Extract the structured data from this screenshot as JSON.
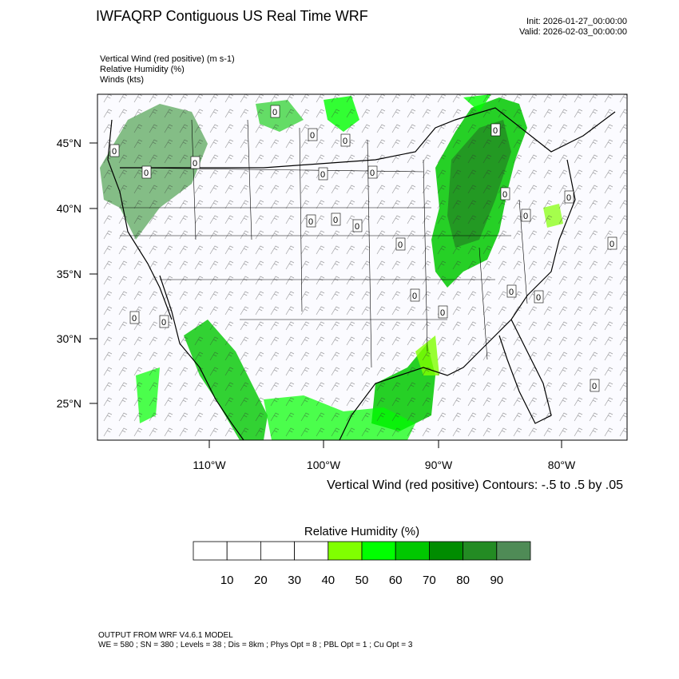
{
  "header": {
    "title": "IWFAQRP Contiguous US Real Time WRF",
    "init": "Init: 2026-01-27_00:00:00",
    "valid": "Valid: 2026-02-03_00:00:00"
  },
  "fields": [
    "Vertical Wind (red positive)   (m s-1)",
    "Relative Humidity   (%)",
    "Winds   (kts)"
  ],
  "map": {
    "lat_labels": [
      "45°N",
      "40°N",
      "35°N",
      "30°N",
      "25°N"
    ],
    "lon_labels": [
      "110°W",
      "100°W",
      "90°W",
      "80°W"
    ],
    "contour_labels": [
      "0",
      "0",
      "0",
      "0",
      "0",
      "0",
      "0",
      "0",
      "0",
      "0",
      "0",
      "0",
      "0",
      "0",
      "0",
      "0",
      "0",
      "0",
      "0",
      "0",
      "0",
      "0",
      "0",
      "0"
    ],
    "contour_note": "Vertical Wind (red positive) Contours: -.5 to .5 by .05"
  },
  "colorbar": {
    "title": "Relative Humidity  (%)",
    "labels": [
      10,
      20,
      30,
      40,
      50,
      60,
      70,
      80,
      90
    ],
    "colors": [
      "#ffffff",
      "#ffffff",
      "#ffffff",
      "#ffffff",
      "#80ff00",
      "#00ff00",
      "#00c800",
      "#008c00",
      "#238b23",
      "#4f8b56"
    ]
  },
  "footer": {
    "line1": "OUTPUT FROM WRF V4.6.1 MODEL",
    "line2": "WE = 580 ; SN = 380 ; Levels = 38 ; Dis = 8km ; Phys Opt = 8 ; PBL Opt = 1 ; Cu Opt = 3"
  }
}
